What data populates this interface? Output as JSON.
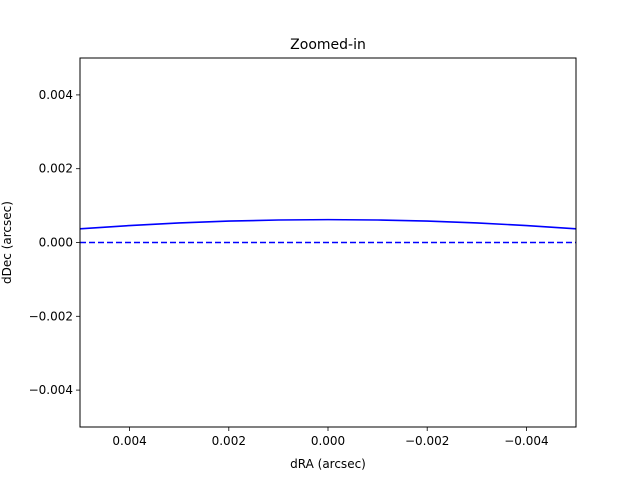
{
  "chart_data": {
    "type": "line",
    "title": "Zoomed-in",
    "xlabel": "dRA (arcsec)",
    "ylabel": "dDec (arcsec)",
    "xlim": [
      0.005,
      -0.005
    ],
    "ylim": [
      -0.005,
      0.005
    ],
    "x_inverted": true,
    "grid": false,
    "xticks": [
      0.004,
      0.002,
      0.0,
      -0.002,
      -0.004
    ],
    "xtick_labels": [
      "0.004",
      "0.002",
      "0.000",
      "−0.002",
      "−0.004"
    ],
    "yticks": [
      0.004,
      0.002,
      0.0,
      -0.002,
      -0.004
    ],
    "ytick_labels": [
      "0.004",
      "0.002",
      "0.000",
      "−0.002",
      "−0.004"
    ],
    "series": [
      {
        "style": "solid",
        "color": "#0000ff",
        "x": [
          0.005,
          0.004,
          0.003,
          0.002,
          0.001,
          0.0,
          -0.001,
          -0.002,
          -0.003,
          -0.004,
          -0.005
        ],
        "y": [
          0.00037,
          0.00046,
          0.00053,
          0.00058,
          0.00061,
          0.00062,
          0.00061,
          0.00058,
          0.00053,
          0.00046,
          0.00037
        ]
      },
      {
        "style": "dashed",
        "color": "#0000ff",
        "x": [
          0.005,
          -0.005
        ],
        "y": [
          0.0,
          0.0
        ]
      }
    ]
  }
}
